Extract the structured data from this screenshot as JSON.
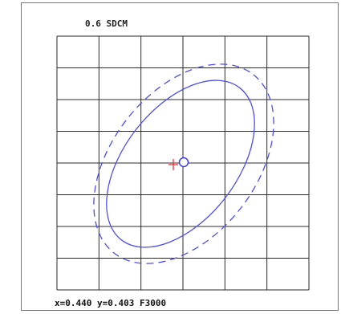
{
  "chart_data": {
    "type": "scatter",
    "title": "0.6 SDCM",
    "grid": true,
    "grid_divisions": {
      "columns": 6,
      "rows": 8
    },
    "readout": "x=0.440 y=0.403 F3000",
    "target_point": {
      "x": 0.44,
      "y": 0.403
    },
    "measured_point_marker": "cross",
    "target_point_marker": "circle",
    "ellipses": [
      {
        "name": "",
        "line_style": "solid"
      },
      {
        "name": "",
        "line_style": "dashed"
      }
    ],
    "colors": {
      "grid": "#2b2b2b",
      "ellipse": "#4d4df0",
      "cross": "#e8323c",
      "circle": "#3c3cf0"
    }
  }
}
